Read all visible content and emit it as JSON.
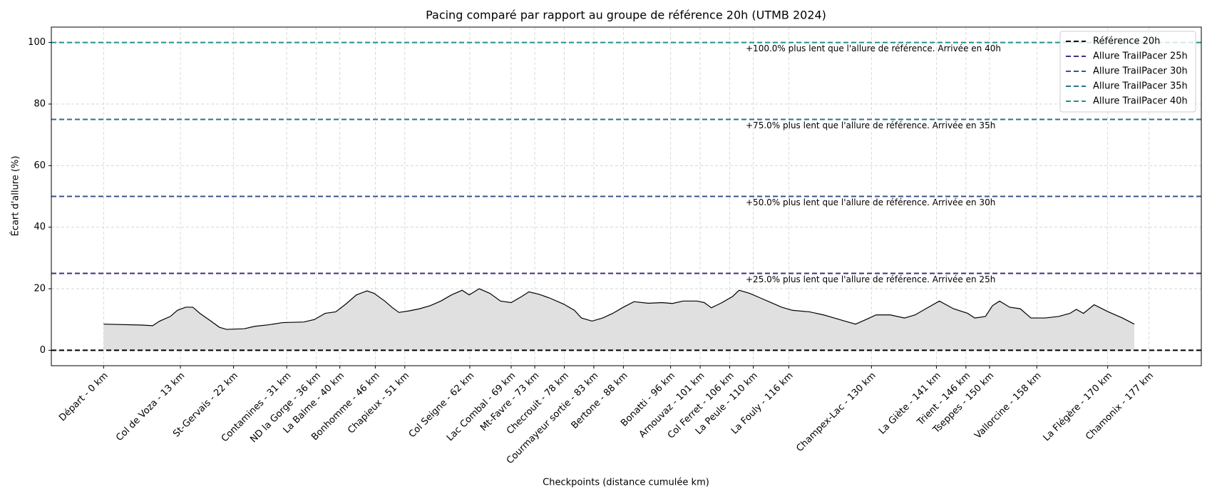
{
  "chart_data": {
    "type": "area",
    "title": "Pacing comparé par rapport au groupe de référence 20h (UTMB 2024)",
    "x_label": "Checkpoints (distance cumulée km)",
    "y_label": "Écart d'allure  (%)",
    "xlim": [
      -8.85,
      185.85
    ],
    "ylim": [
      -5,
      105
    ],
    "yticks": [
      0,
      20,
      40,
      60,
      80,
      100
    ],
    "xticks": [
      {
        "value": 0,
        "label": "Départ - 0 km"
      },
      {
        "value": 13,
        "label": "Col de Voza - 13 km"
      },
      {
        "value": 22,
        "label": "St-Gervais - 22 km"
      },
      {
        "value": 31,
        "label": "Contamines - 31 km"
      },
      {
        "value": 36,
        "label": "ND la Gorge - 36 km"
      },
      {
        "value": 40,
        "label": "La Balme - 40 km"
      },
      {
        "value": 46,
        "label": "Bonhomme - 46 km"
      },
      {
        "value": 51,
        "label": "Chapieux - 51 km"
      },
      {
        "value": 62,
        "label": "Col Seigne - 62 km"
      },
      {
        "value": 69,
        "label": "Lac Combal - 69 km"
      },
      {
        "value": 73,
        "label": "Mt-Favre - 73 km"
      },
      {
        "value": 78,
        "label": "Checrouit - 78 km"
      },
      {
        "value": 83,
        "label": "Courmayeur sortie - 83 km"
      },
      {
        "value": 88,
        "label": "Bertone - 88 km"
      },
      {
        "value": 96,
        "label": "Bonatti - 96 km"
      },
      {
        "value": 101,
        "label": "Arnouvaz - 101 km"
      },
      {
        "value": 106,
        "label": "Col Ferret - 106 km"
      },
      {
        "value": 110,
        "label": "La Peule - 110 km"
      },
      {
        "value": 116,
        "label": "La Fouly - 116 km"
      },
      {
        "value": 130,
        "label": "Champex-Lac - 130 km"
      },
      {
        "value": 141,
        "label": "La Giète - 141 km"
      },
      {
        "value": 146,
        "label": "Trient - 146 km"
      },
      {
        "value": 150,
        "label": "Tseppes - 150 km"
      },
      {
        "value": 158,
        "label": "Vallorcine - 158 km"
      },
      {
        "value": 170,
        "label": "La Flégère - 170 km"
      },
      {
        "value": 177,
        "label": "Chamonix - 177 km"
      }
    ],
    "grid": true,
    "legend": "upper right",
    "color": "#000000",
    "fill_color": "#e0e0e0",
    "x": [
      0,
      6.5,
      8.3,
      9.5,
      11.3,
      12.5,
      13.9,
      15.1,
      16.3,
      17.8,
      19.6,
      20.8,
      23.8,
      25.6,
      28.0,
      30.3,
      33.9,
      35.7,
      37.5,
      39.3,
      41.0,
      42.8,
      44.6,
      45.8,
      47.6,
      48.8,
      50.0,
      51.7,
      53.5,
      55.3,
      57.1,
      58.9,
      60.7,
      61.9,
      63.6,
      65.4,
      67.2,
      69.0,
      70.8,
      72.0,
      73.7,
      75.5,
      77.9,
      79.7,
      80.9,
      82.7,
      84.5,
      86.2,
      88.0,
      89.8,
      92.2,
      94.6,
      96.3,
      98.1,
      100.5,
      101.7,
      102.9,
      104.7,
      106.5,
      107.6,
      109.4,
      111.2,
      113.0,
      114.8,
      116.6,
      119.5,
      121.9,
      123.7,
      125.5,
      127.3,
      129.1,
      130.8,
      133.2,
      135.6,
      137.4,
      139.2,
      141.5,
      143.9,
      146.3,
      147.5,
      149.3,
      150.5,
      151.7,
      153.4,
      155.2,
      157.0,
      159.4,
      161.7,
      163.6,
      164.7,
      165.9,
      167.7,
      170.1,
      172.5,
      174.5
    ],
    "values": [
      8.5,
      8.2,
      8.0,
      9.5,
      11,
      13,
      14,
      14,
      12,
      10,
      7.5,
      6.8,
      7,
      7.8,
      8.3,
      9,
      9.2,
      10,
      12,
      12.5,
      15,
      18,
      19.3,
      18.5,
      16,
      14,
      12.3,
      12.8,
      13.5,
      14.5,
      16,
      18,
      19.5,
      18,
      20,
      18.5,
      16,
      15.5,
      17.5,
      19,
      18.2,
      17,
      15,
      13,
      10.5,
      9.5,
      10.5,
      12,
      14,
      15.8,
      15.3,
      15.5,
      15.2,
      16,
      16,
      15.5,
      13.8,
      15.5,
      17.5,
      19.5,
      18.5,
      17,
      15.5,
      14,
      13,
      12.5,
      11.5,
      10.5,
      9.5,
      8.5,
      10,
      11.5,
      11.5,
      10.5,
      11.5,
      13.5,
      16,
      13.5,
      12,
      10.5,
      11,
      14.5,
      16,
      14,
      13.5,
      10.5,
      10.5,
      11,
      12,
      13.3,
      12,
      14.8,
      12.5,
      10.5,
      8.5
    ],
    "reference_lines": [
      {
        "name": "Référence 20h",
        "color": "#000000",
        "value": 0
      },
      {
        "name": "Allure TrailPacer 25h",
        "color": "#472d7b",
        "value": 25,
        "annotation": "+25.0% plus lent que l'allure de référence. Arrivée en 25h"
      },
      {
        "name": "Allure TrailPacer 30h",
        "color": "#3b528b",
        "value": 50,
        "annotation": "+50.0% plus lent que l'allure de référence. Arrivée en 30h"
      },
      {
        "name": "Allure TrailPacer 35h",
        "color": "#2c728e",
        "value": 75,
        "annotation": "+75.0% plus lent que l'allure de référence. Arrivée en 35h"
      },
      {
        "name": "Allure TrailPacer 40h",
        "color": "#21918c",
        "value": 100,
        "annotation": "+100.0% plus lent que l'allure de référence. Arrivée en 40h"
      }
    ]
  }
}
